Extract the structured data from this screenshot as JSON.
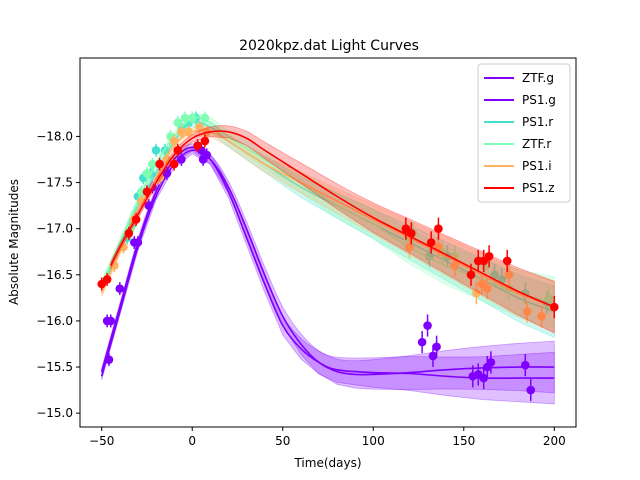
{
  "chart_data": {
    "type": "scatter",
    "title": "2020kpz.dat Light Curves",
    "xlabel": "Time(days)",
    "ylabel": "Absolute Magnitudes",
    "xlim": [
      -62,
      212
    ],
    "ylim": [
      -14.85,
      -18.85
    ],
    "y_inverted": true,
    "xticks": [
      -50,
      0,
      50,
      100,
      150,
      200
    ],
    "yticks": [
      -15.0,
      -15.5,
      -16.0,
      -16.5,
      -17.0,
      -17.5,
      -18.0
    ],
    "xtick_labels": [
      "−50",
      "0",
      "50",
      "100",
      "150",
      "200"
    ],
    "ytick_labels": [
      "−15.0",
      "−15.5",
      "−16.0",
      "−16.5",
      "−17.0",
      "−17.5",
      "−18.0"
    ],
    "grid": false,
    "legend_position": "top-right",
    "series": [
      {
        "name": "ZTF.g",
        "color": "#8000ff",
        "model": [
          [
            -50,
            -15.4
          ],
          [
            -40,
            -16.1
          ],
          [
            -30,
            -16.8
          ],
          [
            -20,
            -17.35
          ],
          [
            -10,
            -17.7
          ],
          [
            0,
            -17.85
          ],
          [
            10,
            -17.75
          ],
          [
            20,
            -17.45
          ],
          [
            30,
            -17.0
          ],
          [
            40,
            -16.5
          ],
          [
            50,
            -16.05
          ],
          [
            60,
            -15.75
          ],
          [
            70,
            -15.55
          ],
          [
            80,
            -15.45
          ],
          [
            90,
            -15.42
          ],
          [
            100,
            -15.42
          ],
          [
            120,
            -15.44
          ],
          [
            140,
            -15.47
          ],
          [
            160,
            -15.49
          ],
          [
            180,
            -15.5
          ],
          [
            200,
            -15.5
          ]
        ],
        "points": [
          [
            -46,
            -15.58
          ],
          [
            -40,
            -16.35
          ],
          [
            -32,
            -16.85
          ],
          [
            -22,
            -17.45
          ],
          [
            -14,
            -17.6
          ],
          [
            -6,
            -17.75
          ],
          [
            5,
            -17.85
          ],
          [
            8,
            -17.8
          ],
          [
            127,
            -15.77
          ],
          [
            130,
            -15.95
          ],
          [
            135,
            -15.72
          ],
          [
            155,
            -15.4
          ],
          [
            158,
            -15.42
          ],
          [
            161,
            -15.38
          ],
          [
            163,
            -15.5
          ],
          [
            165,
            -15.55
          ],
          [
            184,
            -15.52
          ],
          [
            187,
            -15.25
          ]
        ]
      },
      {
        "name": "PS1.g",
        "color": "#7f00ff",
        "model": [
          [
            -50,
            -15.45
          ],
          [
            -40,
            -16.15
          ],
          [
            -30,
            -16.85
          ],
          [
            -20,
            -17.4
          ],
          [
            -10,
            -17.75
          ],
          [
            0,
            -17.88
          ],
          [
            10,
            -17.75
          ],
          [
            20,
            -17.4
          ],
          [
            30,
            -16.9
          ],
          [
            40,
            -16.4
          ],
          [
            50,
            -15.95
          ],
          [
            60,
            -15.7
          ],
          [
            70,
            -15.55
          ],
          [
            80,
            -15.47
          ],
          [
            100,
            -15.44
          ],
          [
            120,
            -15.43
          ],
          [
            140,
            -15.4
          ],
          [
            160,
            -15.38
          ],
          [
            180,
            -15.38
          ],
          [
            200,
            -15.38
          ]
        ],
        "points": [
          [
            -47,
            -16.0
          ],
          [
            -45,
            -16.0
          ],
          [
            -30,
            -16.85
          ],
          [
            -24,
            -17.25
          ],
          [
            3,
            -17.9
          ],
          [
            6,
            -17.75
          ],
          [
            133,
            -15.62
          ]
        ]
      },
      {
        "name": "PS1.r",
        "color": "#40e0d0",
        "model": [
          [
            -50,
            -16.35
          ],
          [
            -40,
            -16.8
          ],
          [
            -30,
            -17.25
          ],
          [
            -20,
            -17.6
          ],
          [
            -10,
            -17.95
          ],
          [
            0,
            -18.15
          ],
          [
            10,
            -18.1
          ],
          [
            20,
            -17.95
          ],
          [
            40,
            -17.7
          ],
          [
            60,
            -17.45
          ],
          [
            80,
            -17.25
          ],
          [
            100,
            -17.05
          ],
          [
            120,
            -16.85
          ],
          [
            140,
            -16.65
          ],
          [
            160,
            -16.45
          ],
          [
            180,
            -16.25
          ],
          [
            200,
            -16.1
          ]
        ],
        "points": [
          [
            -36,
            -16.9
          ],
          [
            -33,
            -17.05
          ],
          [
            -30,
            -17.35
          ],
          [
            -27,
            -17.55
          ],
          [
            -23,
            -17.6
          ],
          [
            -20,
            -17.85
          ],
          [
            -15,
            -17.85
          ],
          [
            -10,
            -17.95
          ],
          [
            -6,
            -18.1
          ],
          [
            -2,
            -18.15
          ],
          [
            2,
            -18.2
          ],
          [
            131,
            -16.7
          ],
          [
            141,
            -16.7
          ],
          [
            161,
            -16.65
          ],
          [
            167,
            -16.5
          ],
          [
            171,
            -16.45
          ],
          [
            184,
            -16.3
          ],
          [
            196,
            -16.2
          ]
        ]
      },
      {
        "name": "ZTF.r",
        "color": "#80ffb4",
        "model": [
          [
            -50,
            -16.4
          ],
          [
            -40,
            -16.85
          ],
          [
            -30,
            -17.3
          ],
          [
            -20,
            -17.7
          ],
          [
            -10,
            -18.0
          ],
          [
            0,
            -18.2
          ],
          [
            10,
            -18.15
          ],
          [
            20,
            -18.0
          ],
          [
            40,
            -17.75
          ],
          [
            60,
            -17.5
          ],
          [
            80,
            -17.25
          ],
          [
            100,
            -17.05
          ],
          [
            120,
            -16.8
          ],
          [
            140,
            -16.6
          ],
          [
            160,
            -16.45
          ],
          [
            180,
            -16.3
          ],
          [
            200,
            -16.2
          ]
        ],
        "points": [
          [
            -34,
            -17.0
          ],
          [
            -28,
            -17.4
          ],
          [
            -25,
            -17.6
          ],
          [
            -22,
            -17.7
          ],
          [
            -12,
            -18.0
          ],
          [
            -8,
            -18.15
          ],
          [
            -4,
            -18.2
          ],
          [
            0,
            -18.2
          ],
          [
            7,
            -18.2
          ],
          [
            119,
            -16.9
          ],
          [
            122,
            -16.95
          ],
          [
            138,
            -16.75
          ],
          [
            145,
            -16.7
          ],
          [
            162,
            -16.6
          ],
          [
            175,
            -16.35
          ],
          [
            197,
            -16.25
          ]
        ]
      },
      {
        "name": "PS1.i",
        "color": "#ffb360",
        "model": [
          [
            -50,
            -16.3
          ],
          [
            -40,
            -16.75
          ],
          [
            -30,
            -17.2
          ],
          [
            -20,
            -17.55
          ],
          [
            -10,
            -17.9
          ],
          [
            0,
            -18.05
          ],
          [
            10,
            -18.05
          ],
          [
            20,
            -17.95
          ],
          [
            40,
            -17.7
          ],
          [
            60,
            -17.5
          ],
          [
            80,
            -17.3
          ],
          [
            100,
            -17.1
          ],
          [
            120,
            -16.9
          ],
          [
            140,
            -16.7
          ],
          [
            160,
            -16.5
          ],
          [
            180,
            -16.3
          ],
          [
            200,
            -16.15
          ]
        ],
        "points": [
          [
            -43,
            -16.6
          ],
          [
            -38,
            -16.8
          ],
          [
            -32,
            -17.1
          ],
          [
            -28,
            -17.3
          ],
          [
            -18,
            -17.55
          ],
          [
            -14,
            -17.75
          ],
          [
            -10,
            -17.95
          ],
          [
            -6,
            -18.05
          ],
          [
            -2,
            -18.05
          ],
          [
            4,
            -18.1
          ],
          [
            8,
            -18.05
          ],
          [
            120,
            -16.8
          ],
          [
            136,
            -16.8
          ],
          [
            145,
            -16.6
          ],
          [
            157,
            -16.3
          ],
          [
            160,
            -16.4
          ],
          [
            163,
            -16.35
          ],
          [
            175,
            -16.5
          ],
          [
            185,
            -16.1
          ],
          [
            193,
            -16.05
          ]
        ]
      },
      {
        "name": "PS1.z",
        "color": "#ff0000",
        "model": [
          [
            -45,
            -16.6
          ],
          [
            -40,
            -16.8
          ],
          [
            -30,
            -17.15
          ],
          [
            -20,
            -17.5
          ],
          [
            -10,
            -17.8
          ],
          [
            0,
            -17.98
          ],
          [
            10,
            -18.05
          ],
          [
            20,
            -18.05
          ],
          [
            30,
            -17.98
          ],
          [
            40,
            -17.85
          ],
          [
            60,
            -17.6
          ],
          [
            80,
            -17.35
          ],
          [
            100,
            -17.12
          ],
          [
            120,
            -16.92
          ],
          [
            140,
            -16.72
          ],
          [
            160,
            -16.52
          ],
          [
            180,
            -16.32
          ],
          [
            200,
            -16.15
          ]
        ],
        "points": [
          [
            -50,
            -16.4
          ],
          [
            -47,
            -16.45
          ],
          [
            -35,
            -16.95
          ],
          [
            -31,
            -17.1
          ],
          [
            -25,
            -17.4
          ],
          [
            -18,
            -17.7
          ],
          [
            -10,
            -17.7
          ],
          [
            -8,
            -17.85
          ],
          [
            3,
            -17.9
          ],
          [
            7,
            -17.95
          ],
          [
            118,
            -17.0
          ],
          [
            121,
            -16.95
          ],
          [
            132,
            -16.85
          ],
          [
            136,
            -17.0
          ],
          [
            154,
            -16.5
          ],
          [
            158,
            -16.65
          ],
          [
            161,
            -16.65
          ],
          [
            164,
            -16.7
          ],
          [
            174,
            -16.65
          ],
          [
            200,
            -16.15
          ]
        ]
      }
    ]
  }
}
